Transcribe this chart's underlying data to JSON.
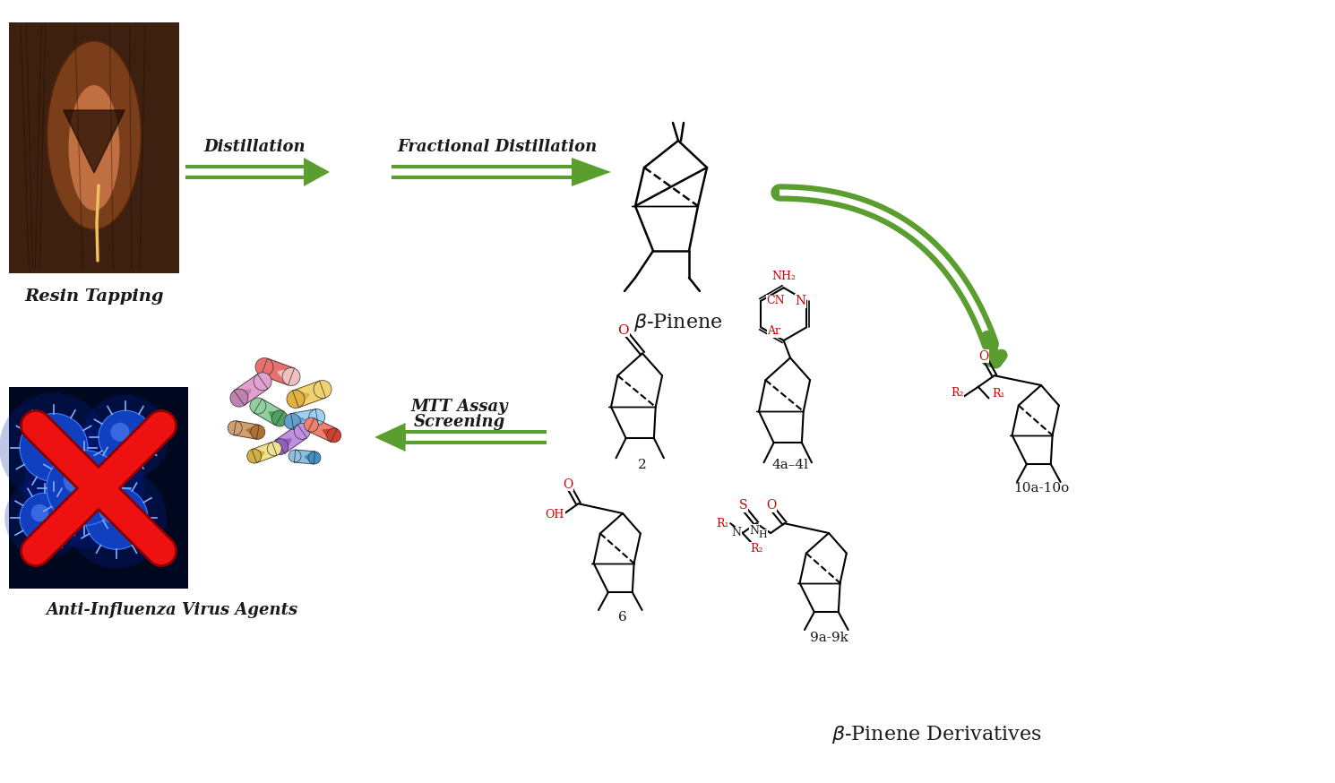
{
  "bg_color": "#ffffff",
  "arrow_color": "#5a9e2f",
  "text_color_black": "#1a1a1a",
  "text_color_red": "#cc0000",
  "label_distillation": "Distillation",
  "label_frac_distillation": "Fractional Distillation",
  "label_beta_pinene": "β-Pinene",
  "label_resin": "Resin Tapping",
  "label_mtt": "MTT Assay",
  "label_screening": "Screening",
  "label_anti": "Anti-Influenza Virus Agents",
  "label_beta_deriv": "β-Pinene Derivatives",
  "label_2": "2",
  "label_4a4l": "4a–4l",
  "label_6": "6",
  "label_9a9k": "9a-9k",
  "label_10a10o": "10a-10o",
  "figsize": [
    14.9,
    8.74
  ],
  "dpi": 100
}
